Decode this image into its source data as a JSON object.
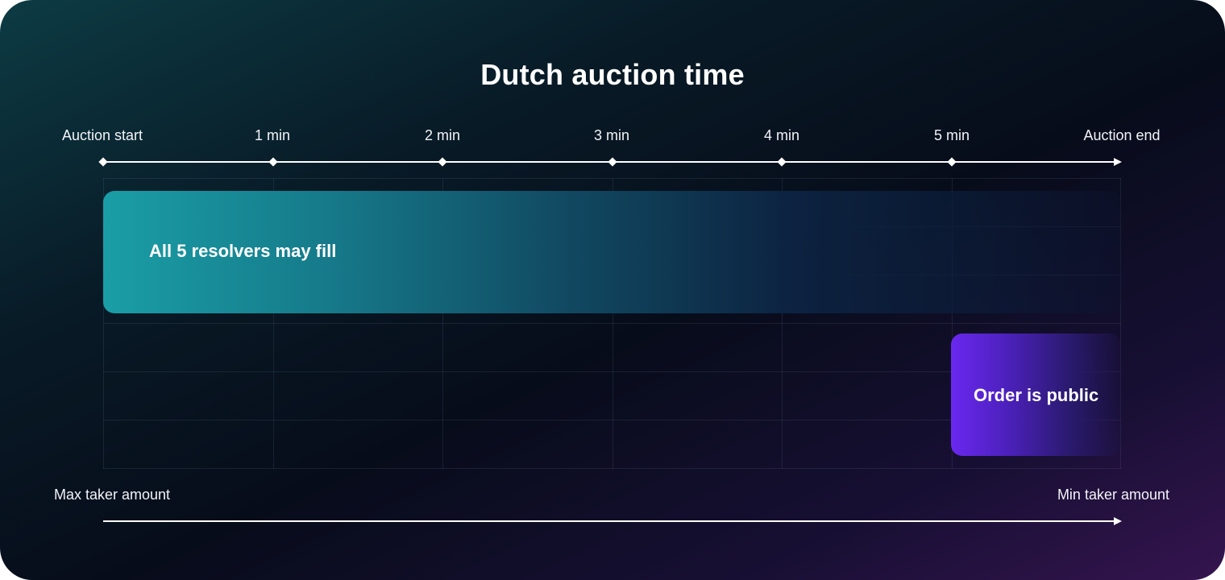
{
  "title": "Dutch auction time",
  "timeline": {
    "ticks": [
      "Auction start",
      "1 min",
      "2 min",
      "3 min",
      "4 min",
      "5 min",
      "Auction end"
    ]
  },
  "bars": {
    "resolvers": "All 5 resolvers may fill",
    "public": "Order is public"
  },
  "amount_axis": {
    "start": "Max taker amount",
    "end": "Min taker amount"
  },
  "colors": {
    "resolvers_bar": "#1a9ea6",
    "public_bar": "#6a28f0",
    "axis": "#ffffff"
  }
}
